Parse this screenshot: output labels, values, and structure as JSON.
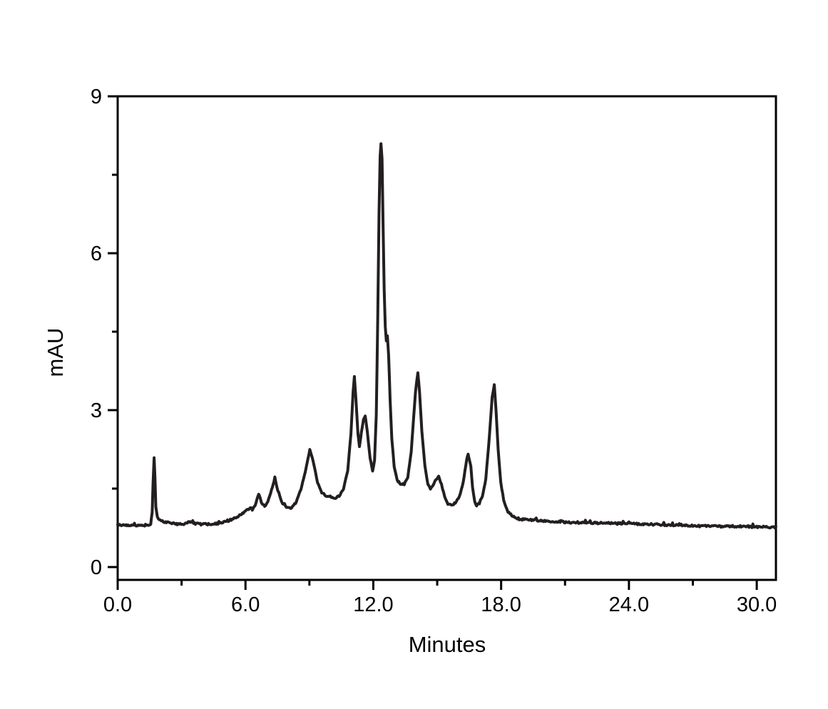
{
  "figure": {
    "background": "#ffffff",
    "axis_color": "#000000",
    "trace_color": "#231f20",
    "text_color": "#000000"
  },
  "chart_data": {
    "type": "line",
    "title": "",
    "xlabel": "Minutes",
    "ylabel": "mAU",
    "xlim": [
      0,
      30.9
    ],
    "ylim": [
      -0.25,
      9
    ],
    "grid": false,
    "legend": "none",
    "x_major_ticks": [
      0,
      6,
      12,
      18,
      24,
      30
    ],
    "x_major_tick_labels": [
      "0.0",
      "6.0",
      "12.0",
      "18.0",
      "24.0",
      "30.0"
    ],
    "x_minor_ticks": [
      3,
      9,
      15,
      21,
      27
    ],
    "y_major_ticks": [
      0,
      3,
      6,
      9
    ],
    "y_major_tick_labels": [
      "0",
      "3",
      "6",
      "9"
    ],
    "y_minor_ticks": [
      1.5,
      4.5,
      7.5
    ],
    "baseline_mau": 0.8,
    "main_peaks": [
      {
        "t_min": 1.7,
        "mau": 2.1
      },
      {
        "t_min": 6.6,
        "mau": 1.4
      },
      {
        "t_min": 7.4,
        "mau": 1.7
      },
      {
        "t_min": 9.0,
        "mau": 2.25
      },
      {
        "t_min": 11.1,
        "mau": 3.65
      },
      {
        "t_min": 11.6,
        "mau": 2.9
      },
      {
        "t_min": 12.4,
        "mau": 8.1
      },
      {
        "t_min": 12.65,
        "mau": 4.4
      },
      {
        "t_min": 14.1,
        "mau": 3.7
      },
      {
        "t_min": 15.1,
        "mau": 1.73
      },
      {
        "t_min": 16.45,
        "mau": 2.16
      },
      {
        "t_min": 17.7,
        "mau": 3.48
      }
    ],
    "series": [
      {
        "name": "chromatogram",
        "points": [
          [
            0.0,
            0.8
          ],
          [
            0.35,
            0.8
          ],
          [
            0.7,
            0.79
          ],
          [
            1.05,
            0.81
          ],
          [
            1.35,
            0.8
          ],
          [
            1.55,
            0.82
          ],
          [
            1.62,
            1.05
          ],
          [
            1.66,
            1.6
          ],
          [
            1.71,
            2.09
          ],
          [
            1.75,
            1.7
          ],
          [
            1.79,
            1.15
          ],
          [
            1.86,
            0.96
          ],
          [
            2.0,
            0.89
          ],
          [
            2.2,
            0.86
          ],
          [
            2.5,
            0.84
          ],
          [
            2.8,
            0.82
          ],
          [
            3.1,
            0.83
          ],
          [
            3.4,
            0.87
          ],
          [
            3.65,
            0.83
          ],
          [
            4.0,
            0.82
          ],
          [
            4.4,
            0.82
          ],
          [
            4.8,
            0.84
          ],
          [
            5.2,
            0.88
          ],
          [
            5.6,
            0.96
          ],
          [
            5.9,
            1.04
          ],
          [
            6.1,
            1.1
          ],
          [
            6.22,
            1.14
          ],
          [
            6.32,
            1.1
          ],
          [
            6.45,
            1.18
          ],
          [
            6.62,
            1.4
          ],
          [
            6.75,
            1.24
          ],
          [
            6.9,
            1.16
          ],
          [
            7.05,
            1.26
          ],
          [
            7.22,
            1.47
          ],
          [
            7.38,
            1.7
          ],
          [
            7.52,
            1.46
          ],
          [
            7.7,
            1.24
          ],
          [
            7.92,
            1.14
          ],
          [
            8.12,
            1.12
          ],
          [
            8.35,
            1.22
          ],
          [
            8.6,
            1.48
          ],
          [
            8.85,
            1.9
          ],
          [
            9.02,
            2.25
          ],
          [
            9.18,
            2.02
          ],
          [
            9.38,
            1.62
          ],
          [
            9.58,
            1.42
          ],
          [
            9.78,
            1.37
          ],
          [
            9.98,
            1.35
          ],
          [
            10.18,
            1.31
          ],
          [
            10.4,
            1.36
          ],
          [
            10.6,
            1.5
          ],
          [
            10.8,
            1.85
          ],
          [
            10.95,
            2.55
          ],
          [
            11.05,
            3.35
          ],
          [
            11.11,
            3.64
          ],
          [
            11.18,
            3.25
          ],
          [
            11.28,
            2.55
          ],
          [
            11.35,
            2.3
          ],
          [
            11.44,
            2.58
          ],
          [
            11.54,
            2.82
          ],
          [
            11.62,
            2.89
          ],
          [
            11.72,
            2.58
          ],
          [
            11.85,
            2.08
          ],
          [
            11.97,
            1.83
          ],
          [
            12.06,
            2.05
          ],
          [
            12.14,
            2.9
          ],
          [
            12.21,
            4.8
          ],
          [
            12.27,
            6.8
          ],
          [
            12.32,
            7.85
          ],
          [
            12.36,
            8.09
          ],
          [
            12.41,
            7.8
          ],
          [
            12.46,
            6.5
          ],
          [
            12.51,
            5.3
          ],
          [
            12.56,
            4.6
          ],
          [
            12.61,
            4.32
          ],
          [
            12.66,
            4.42
          ],
          [
            12.72,
            4.05
          ],
          [
            12.79,
            3.2
          ],
          [
            12.87,
            2.45
          ],
          [
            12.98,
            1.92
          ],
          [
            13.12,
            1.66
          ],
          [
            13.28,
            1.59
          ],
          [
            13.45,
            1.58
          ],
          [
            13.62,
            1.72
          ],
          [
            13.78,
            2.2
          ],
          [
            13.9,
            2.9
          ],
          [
            13.98,
            3.35
          ],
          [
            14.09,
            3.71
          ],
          [
            14.17,
            3.35
          ],
          [
            14.28,
            2.6
          ],
          [
            14.42,
            1.95
          ],
          [
            14.56,
            1.58
          ],
          [
            14.68,
            1.5
          ],
          [
            14.82,
            1.58
          ],
          [
            14.95,
            1.68
          ],
          [
            15.07,
            1.73
          ],
          [
            15.2,
            1.58
          ],
          [
            15.35,
            1.35
          ],
          [
            15.5,
            1.21
          ],
          [
            15.68,
            1.18
          ],
          [
            15.85,
            1.23
          ],
          [
            16.05,
            1.35
          ],
          [
            16.22,
            1.62
          ],
          [
            16.38,
            2.05
          ],
          [
            16.45,
            2.16
          ],
          [
            16.52,
            2.02
          ],
          [
            16.58,
            1.92
          ],
          [
            16.66,
            1.52
          ],
          [
            16.76,
            1.25
          ],
          [
            16.85,
            1.18
          ],
          [
            16.98,
            1.22
          ],
          [
            17.12,
            1.35
          ],
          [
            17.28,
            1.68
          ],
          [
            17.45,
            2.5
          ],
          [
            17.58,
            3.25
          ],
          [
            17.68,
            3.48
          ],
          [
            17.76,
            3.0
          ],
          [
            17.86,
            2.25
          ],
          [
            17.98,
            1.62
          ],
          [
            18.12,
            1.28
          ],
          [
            18.32,
            1.06
          ],
          [
            18.55,
            0.97
          ],
          [
            18.85,
            0.92
          ],
          [
            19.3,
            0.9
          ],
          [
            20.0,
            0.88
          ],
          [
            21.0,
            0.86
          ],
          [
            22.0,
            0.85
          ],
          [
            23.0,
            0.84
          ],
          [
            24.0,
            0.83
          ],
          [
            25.0,
            0.82
          ],
          [
            26.0,
            0.8
          ],
          [
            27.0,
            0.79
          ],
          [
            28.0,
            0.78
          ],
          [
            29.0,
            0.78
          ],
          [
            30.0,
            0.77
          ],
          [
            30.9,
            0.76
          ]
        ]
      }
    ]
  }
}
